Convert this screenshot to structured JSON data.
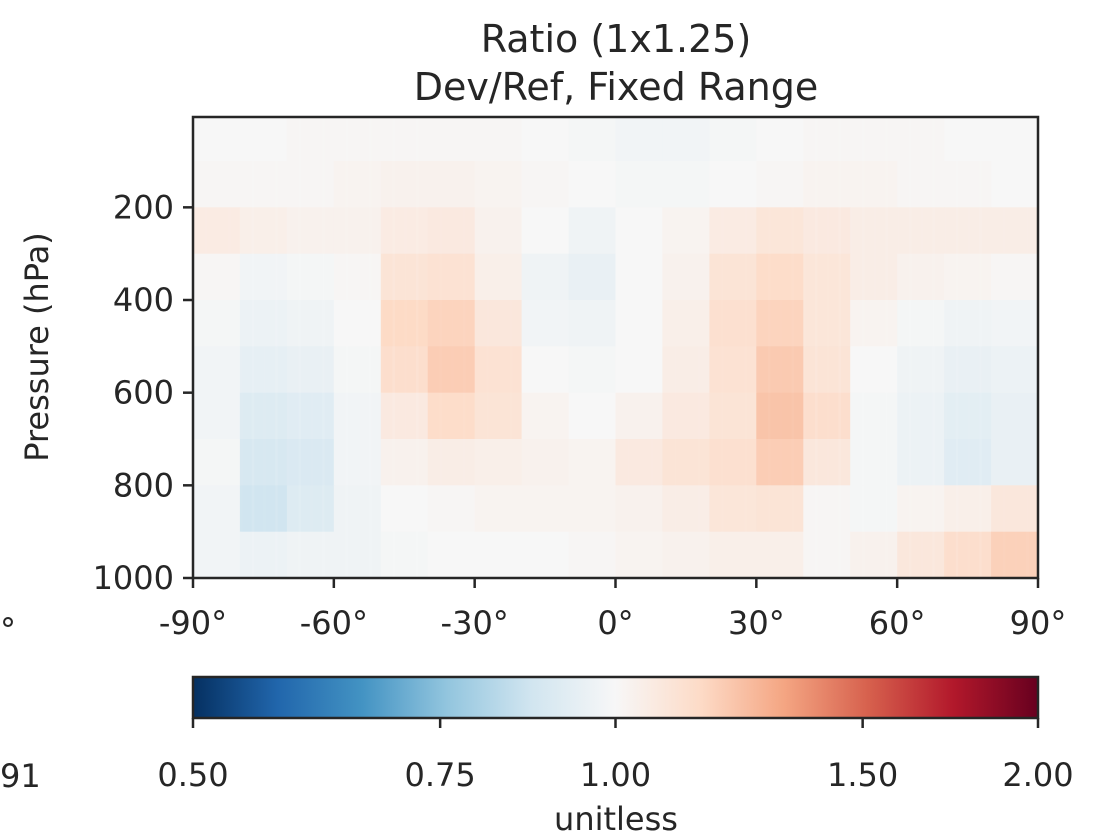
{
  "chart_data": {
    "type": "heatmap",
    "title": "Ratio (1x1.25)",
    "subtitle": "Dev/Ref, Fixed Range",
    "ylabel": "Pressure (hPa)",
    "xlabel": "",
    "x_range": [
      -90,
      90
    ],
    "y_range": [
      1000,
      5
    ],
    "y_reversed": true,
    "x_ticks": [
      {
        "value": -90,
        "label": "-90°"
      },
      {
        "value": -60,
        "label": "-60°"
      },
      {
        "value": -30,
        "label": "-30°"
      },
      {
        "value": 0,
        "label": "0°"
      },
      {
        "value": 30,
        "label": "30°"
      },
      {
        "value": 60,
        "label": "60°"
      },
      {
        "value": 90,
        "label": "90°"
      }
    ],
    "y_ticks": [
      {
        "value": 200,
        "label": "200"
      },
      {
        "value": 400,
        "label": "400"
      },
      {
        "value": 600,
        "label": "600"
      },
      {
        "value": 800,
        "label": "800"
      },
      {
        "value": 1000,
        "label": "1000"
      }
    ],
    "colorbar": {
      "label": "unitless",
      "colormap": "RdBu_r",
      "scale": "log",
      "range": [
        0.5,
        2.0
      ],
      "ticks": [
        {
          "value": 0.5,
          "label": "0.50"
        },
        {
          "value": 0.75,
          "label": "0.75"
        },
        {
          "value": 1.0,
          "label": "1.00"
        },
        {
          "value": 1.5,
          "label": "1.50"
        },
        {
          "value": 2.0,
          "label": "2.00"
        }
      ]
    },
    "grid": false,
    "latitudes": [
      -85,
      -75,
      -65,
      -55,
      -45,
      -35,
      -25,
      -15,
      -5,
      5,
      15,
      25,
      35,
      45,
      55,
      65,
      75,
      85
    ],
    "pressures": [
      50,
      150,
      250,
      350,
      450,
      550,
      650,
      750,
      850,
      950
    ],
    "values": [
      [
        1.0,
        1.0,
        1.01,
        1.01,
        1.01,
        1.01,
        1.01,
        1.0,
        0.99,
        0.98,
        0.98,
        0.99,
        1.0,
        1.01,
        1.01,
        1.01,
        1.0,
        1.0
      ],
      [
        1.01,
        1.01,
        1.01,
        1.02,
        1.03,
        1.03,
        1.02,
        1.01,
        1.0,
        0.99,
        0.99,
        1.0,
        1.01,
        1.02,
        1.02,
        1.01,
        1.01,
        1.0
      ],
      [
        1.06,
        1.04,
        1.03,
        1.03,
        1.06,
        1.07,
        1.03,
        1.0,
        0.97,
        1.0,
        1.02,
        1.06,
        1.09,
        1.07,
        1.05,
        1.05,
        1.05,
        1.05
      ],
      [
        1.01,
        0.98,
        0.99,
        1.01,
        1.1,
        1.11,
        1.04,
        0.97,
        0.95,
        1.0,
        1.03,
        1.1,
        1.14,
        1.09,
        1.05,
        1.03,
        1.02,
        1.01
      ],
      [
        0.99,
        0.96,
        0.97,
        1.0,
        1.15,
        1.17,
        1.08,
        0.98,
        0.97,
        1.0,
        1.04,
        1.12,
        1.17,
        1.09,
        1.02,
        0.99,
        0.97,
        0.98
      ],
      [
        0.98,
        0.94,
        0.95,
        0.99,
        1.13,
        1.19,
        1.11,
        1.0,
        0.99,
        1.0,
        1.05,
        1.11,
        1.2,
        1.1,
        1.0,
        0.97,
        0.95,
        0.96
      ],
      [
        0.98,
        0.91,
        0.92,
        0.98,
        1.07,
        1.14,
        1.1,
        1.02,
        1.0,
        1.03,
        1.07,
        1.1,
        1.22,
        1.13,
        0.99,
        0.96,
        0.93,
        0.95
      ],
      [
        0.99,
        0.89,
        0.9,
        0.98,
        1.03,
        1.05,
        1.04,
        1.03,
        1.02,
        1.07,
        1.1,
        1.12,
        1.19,
        1.08,
        0.99,
        0.96,
        0.92,
        0.95
      ],
      [
        0.98,
        0.87,
        0.91,
        0.97,
        1.0,
        1.01,
        1.02,
        1.02,
        1.02,
        1.03,
        1.05,
        1.09,
        1.1,
        1.01,
        0.99,
        1.02,
        1.04,
        1.08
      ],
      [
        0.98,
        0.96,
        0.97,
        0.97,
        0.99,
        1.0,
        1.0,
        1.0,
        1.01,
        1.02,
        1.03,
        1.04,
        1.04,
        1.01,
        1.03,
        1.08,
        1.13,
        1.18
      ]
    ]
  },
  "clipped_left": {
    "tick_fragment": "°",
    "colorbar_fragment": "91"
  }
}
